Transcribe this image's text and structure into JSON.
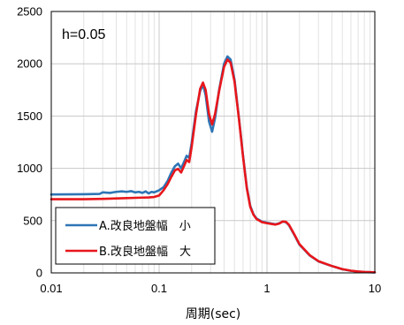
{
  "chart_data": {
    "type": "line",
    "title": "",
    "annotation": "h=0.05",
    "xlabel": "周期(sec)",
    "ylabel": "",
    "x_scale": "log",
    "xlim": [
      0.01,
      10
    ],
    "ylim": [
      0,
      2500
    ],
    "x_ticks": [
      0.01,
      0.1,
      1,
      10
    ],
    "x_tick_labels": [
      "0.01",
      "0.1",
      "1",
      "10"
    ],
    "y_ticks": [
      0,
      500,
      1000,
      1500,
      2000,
      2500
    ],
    "y_tick_labels": [
      "0",
      "500",
      "1000",
      "1500",
      "2000",
      "2500"
    ],
    "grid": true,
    "legend_position": "bottom-left",
    "series": [
      {
        "name": "A.改良地盤幅　小",
        "color": "#2e75b6",
        "points": [
          [
            0.01,
            750
          ],
          [
            0.02,
            752
          ],
          [
            0.028,
            755
          ],
          [
            0.03,
            770
          ],
          [
            0.035,
            765
          ],
          [
            0.04,
            775
          ],
          [
            0.045,
            780
          ],
          [
            0.05,
            775
          ],
          [
            0.055,
            782
          ],
          [
            0.06,
            770
          ],
          [
            0.065,
            775
          ],
          [
            0.07,
            765
          ],
          [
            0.075,
            780
          ],
          [
            0.08,
            760
          ],
          [
            0.085,
            775
          ],
          [
            0.09,
            770
          ],
          [
            0.1,
            790
          ],
          [
            0.11,
            820
          ],
          [
            0.12,
            880
          ],
          [
            0.13,
            960
          ],
          [
            0.14,
            1020
          ],
          [
            0.15,
            1045
          ],
          [
            0.16,
            1000
          ],
          [
            0.17,
            1060
          ],
          [
            0.18,
            1120
          ],
          [
            0.19,
            1100
          ],
          [
            0.2,
            1240
          ],
          [
            0.22,
            1550
          ],
          [
            0.24,
            1740
          ],
          [
            0.255,
            1800
          ],
          [
            0.27,
            1700
          ],
          [
            0.29,
            1450
          ],
          [
            0.31,
            1350
          ],
          [
            0.33,
            1480
          ],
          [
            0.36,
            1750
          ],
          [
            0.4,
            2000
          ],
          [
            0.43,
            2070
          ],
          [
            0.46,
            2040
          ],
          [
            0.5,
            1850
          ],
          [
            0.55,
            1480
          ],
          [
            0.6,
            1120
          ],
          [
            0.65,
            820
          ],
          [
            0.7,
            640
          ],
          [
            0.75,
            560
          ],
          [
            0.8,
            520
          ],
          [
            0.9,
            490
          ],
          [
            1.0,
            480
          ],
          [
            1.1,
            472
          ],
          [
            1.2,
            465
          ],
          [
            1.3,
            475
          ],
          [
            1.4,
            490
          ],
          [
            1.5,
            485
          ],
          [
            1.6,
            455
          ],
          [
            1.8,
            360
          ],
          [
            2.0,
            270
          ],
          [
            2.5,
            165
          ],
          [
            3.0,
            110
          ],
          [
            4.0,
            65
          ],
          [
            5.0,
            35
          ],
          [
            6.0,
            20
          ],
          [
            7.0,
            12
          ],
          [
            8.0,
            8
          ],
          [
            10.0,
            5
          ]
        ]
      },
      {
        "name": "B.改良地盤幅　大",
        "color": "#e8161b",
        "points": [
          [
            0.01,
            705
          ],
          [
            0.02,
            705
          ],
          [
            0.03,
            708
          ],
          [
            0.04,
            712
          ],
          [
            0.05,
            715
          ],
          [
            0.06,
            718
          ],
          [
            0.07,
            720
          ],
          [
            0.08,
            722
          ],
          [
            0.09,
            726
          ],
          [
            0.1,
            740
          ],
          [
            0.11,
            790
          ],
          [
            0.12,
            850
          ],
          [
            0.13,
            920
          ],
          [
            0.14,
            980
          ],
          [
            0.15,
            995
          ],
          [
            0.16,
            960
          ],
          [
            0.17,
            1020
          ],
          [
            0.18,
            1080
          ],
          [
            0.19,
            1060
          ],
          [
            0.2,
            1200
          ],
          [
            0.22,
            1520
          ],
          [
            0.24,
            1760
          ],
          [
            0.255,
            1820
          ],
          [
            0.27,
            1750
          ],
          [
            0.29,
            1520
          ],
          [
            0.31,
            1420
          ],
          [
            0.33,
            1520
          ],
          [
            0.36,
            1740
          ],
          [
            0.4,
            1970
          ],
          [
            0.43,
            2040
          ],
          [
            0.46,
            2010
          ],
          [
            0.5,
            1830
          ],
          [
            0.55,
            1470
          ],
          [
            0.6,
            1110
          ],
          [
            0.65,
            810
          ],
          [
            0.7,
            630
          ],
          [
            0.75,
            555
          ],
          [
            0.8,
            515
          ],
          [
            0.9,
            485
          ],
          [
            1.0,
            475
          ],
          [
            1.1,
            468
          ],
          [
            1.2,
            462
          ],
          [
            1.3,
            472
          ],
          [
            1.4,
            492
          ],
          [
            1.5,
            488
          ],
          [
            1.6,
            460
          ],
          [
            1.8,
            365
          ],
          [
            2.0,
            275
          ],
          [
            2.5,
            168
          ],
          [
            3.0,
            112
          ],
          [
            4.0,
            66
          ],
          [
            5.0,
            36
          ],
          [
            6.0,
            21
          ],
          [
            7.0,
            13
          ],
          [
            8.0,
            9
          ],
          [
            10.0,
            6
          ]
        ]
      }
    ]
  }
}
